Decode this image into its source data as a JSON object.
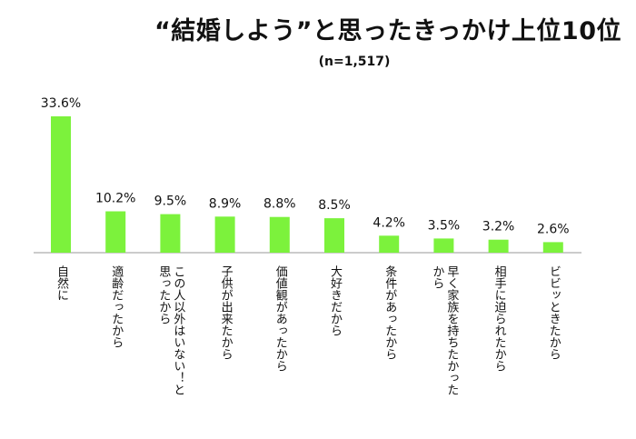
{
  "chart_data": {
    "type": "bar",
    "title": "“結婚しよう”と思ったきっかけ上位10位",
    "subtitle": "(n=1,517)",
    "categories": [
      [
        "自然に"
      ],
      [
        "適齢だったから"
      ],
      [
        "この人以外はいない！と",
        "思ったから"
      ],
      [
        "子供が出来たから"
      ],
      [
        "価値観があったから"
      ],
      [
        "大好きだから"
      ],
      [
        "条件があったから"
      ],
      [
        "早く家族を持ちたかった",
        "から"
      ],
      [
        "相手に迫られたから"
      ],
      [
        "ビビッときたから"
      ]
    ],
    "values": [
      33.6,
      10.2,
      9.5,
      8.9,
      8.8,
      8.5,
      4.2,
      3.5,
      3.2,
      2.6
    ],
    "value_labels": [
      "33.6%",
      "10.2%",
      "9.5%",
      "8.9%",
      "8.8%",
      "8.5%",
      "4.2%",
      "3.5%",
      "3.2%",
      "2.6%"
    ],
    "ylim": [
      0,
      33.6
    ],
    "grid": false,
    "bar_color": "#7cf23c",
    "axis_color": "#999999"
  }
}
